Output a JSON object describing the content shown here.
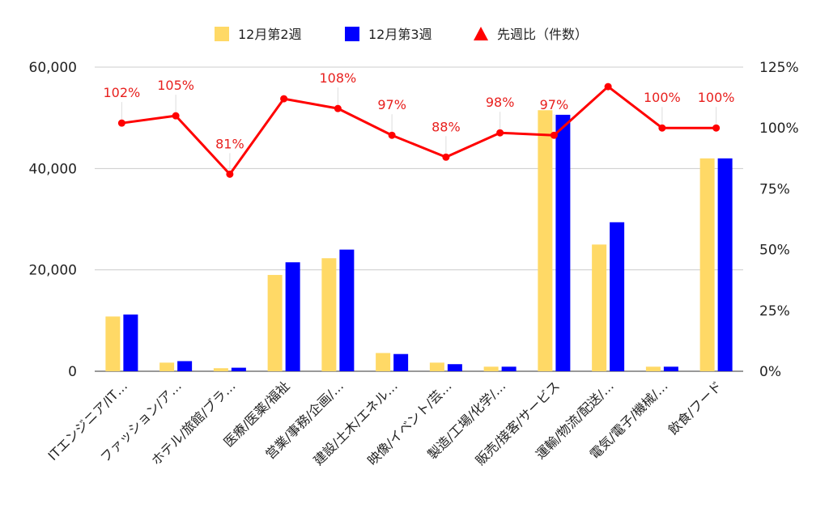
{
  "chart_data": {
    "type": "bar",
    "categories": [
      "ITエンジニア/IT…",
      "ファッション/ア…",
      "ホテル/旅館/ブラ…",
      "医療/医薬/福祉",
      "営業/事務/企画/…",
      "建設/土木/エネル…",
      "映像/イベント/芸…",
      "製造/工場/化学/…",
      "販売/接客/サービス",
      "運輸/物流/配送/…",
      "電気/電子/機械/…",
      "飲食/フード"
    ],
    "series": [
      {
        "name": "12月第2週",
        "color": "#ffd966",
        "axis": "left",
        "values": [
          10800,
          1700,
          600,
          19000,
          22300,
          3600,
          1700,
          900,
          51500,
          25000,
          900,
          42000
        ]
      },
      {
        "name": "12月第3週",
        "color": "#0000ff",
        "axis": "left",
        "values": [
          11200,
          2000,
          700,
          21500,
          24000,
          3400,
          1400,
          900,
          50600,
          29400,
          900,
          42000
        ]
      },
      {
        "name": "先週比（件数）",
        "color": "#ff0000",
        "axis": "right",
        "type": "line",
        "marker": "triangle",
        "values": [
          102,
          105,
          81,
          112,
          108,
          97,
          88,
          98,
          97,
          117,
          100,
          100
        ],
        "labels": [
          "102%",
          "105%",
          "81%",
          "",
          "108%",
          "97%",
          "88%",
          "98%",
          "97%",
          "",
          "100%",
          "100%"
        ]
      }
    ],
    "y_left": {
      "min": 0,
      "max": 60000,
      "ticks": [
        "0",
        "20,000",
        "40,000",
        "60,000"
      ]
    },
    "y_right": {
      "min": 0,
      "max": 125,
      "ticks": [
        "0%",
        "25%",
        "50%",
        "75%",
        "100%",
        "125%"
      ]
    },
    "legend": "top",
    "grid": true,
    "gridColor": "#cccccc"
  }
}
